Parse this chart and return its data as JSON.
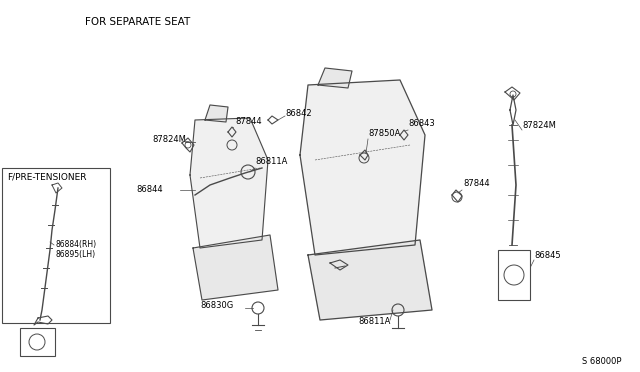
{
  "bg_color": "#ffffff",
  "line_color": "#4a4a4a",
  "text_color": "#000000",
  "title_top": "FOR SEPARATE SEAT",
  "title_box": "F/PRE-TENSIONER",
  "watermark": "S 68000P",
  "figsize": [
    6.4,
    3.72
  ],
  "dpi": 100,
  "font_size_title": 7.5,
  "font_size_label": 6.0,
  "font_size_box_title": 6.5,
  "font_size_watermark": 6.0
}
